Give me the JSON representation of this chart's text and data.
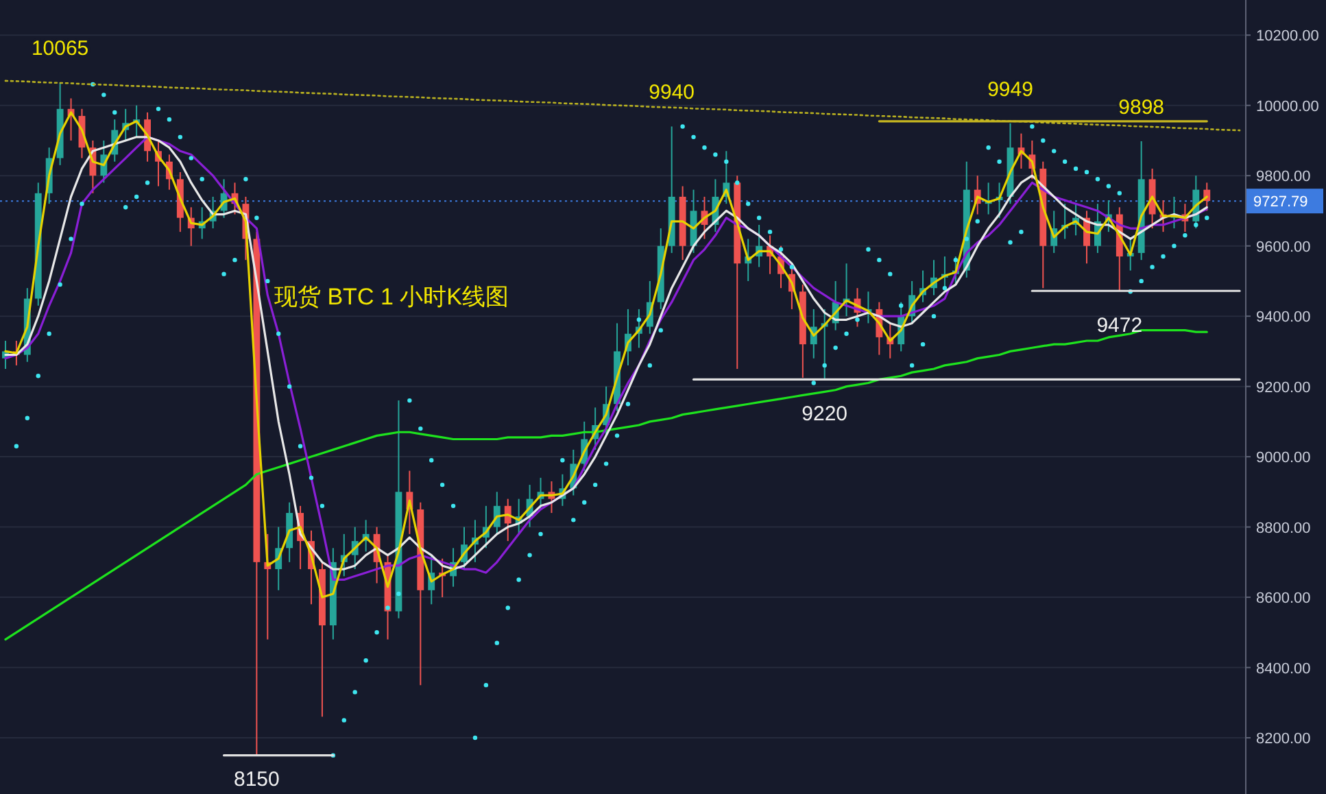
{
  "chart_data": {
    "type": "candlestick",
    "title": "现货 BTC 1 小时K线图",
    "categories": [
      null,
      null,
      null,
      null,
      null,
      null,
      null,
      null,
      null,
      null,
      null,
      null,
      null,
      null,
      null,
      null,
      null,
      null,
      null,
      null,
      null,
      null,
      null,
      null,
      null,
      null,
      null,
      null,
      null,
      null,
      null,
      null,
      null,
      null,
      null,
      null,
      null,
      null,
      null,
      null,
      null,
      null,
      null,
      null,
      null,
      null,
      null,
      null,
      null,
      null,
      null,
      null,
      null,
      null,
      null,
      null,
      null,
      null,
      null,
      null,
      null,
      null,
      null,
      null,
      null,
      null,
      null,
      null,
      null,
      null,
      null,
      null,
      null,
      null,
      null,
      null,
      null,
      null,
      null,
      null,
      null,
      null,
      null,
      null,
      null,
      null,
      null,
      null,
      null,
      null,
      null,
      null,
      null,
      null,
      null,
      null,
      null,
      null,
      null,
      null,
      null,
      null,
      null,
      null,
      null,
      null,
      null,
      null,
      null,
      null,
      null,
      null,
      null,
      null
    ],
    "ohlc": [
      [
        9280,
        9330,
        9250,
        9300
      ],
      [
        9300,
        9330,
        9260,
        9290
      ],
      [
        9290,
        9480,
        9270,
        9450
      ],
      [
        9450,
        9780,
        9430,
        9750
      ],
      [
        9750,
        9880,
        9720,
        9850
      ],
      [
        9850,
        10065,
        9830,
        9990
      ],
      [
        9990,
        10020,
        9900,
        9970
      ],
      [
        9970,
        9990,
        9850,
        9880
      ],
      [
        9880,
        9900,
        9750,
        9800
      ],
      [
        9800,
        9900,
        9780,
        9860
      ],
      [
        9860,
        9960,
        9840,
        9930
      ],
      [
        9930,
        9990,
        9900,
        9950
      ],
      [
        9950,
        10000,
        9910,
        9960
      ],
      [
        9960,
        9980,
        9840,
        9870
      ],
      [
        9870,
        9900,
        9770,
        9840
      ],
      [
        9840,
        9860,
        9760,
        9790
      ],
      [
        9790,
        9810,
        9640,
        9680
      ],
      [
        9680,
        9710,
        9600,
        9650
      ],
      [
        9650,
        9710,
        9620,
        9670
      ],
      [
        9670,
        9740,
        9650,
        9700
      ],
      [
        9700,
        9790,
        9680,
        9750
      ],
      [
        9750,
        9780,
        9690,
        9720
      ],
      [
        9720,
        9740,
        9560,
        9620
      ],
      [
        9620,
        9640,
        8150,
        8700
      ],
      [
        8700,
        8780,
        8480,
        8680
      ],
      [
        8680,
        8800,
        8620,
        8740
      ],
      [
        8740,
        8870,
        8700,
        8840
      ],
      [
        8840,
        8860,
        8680,
        8760
      ],
      [
        8760,
        8790,
        8580,
        8680
      ],
      [
        8680,
        8700,
        8260,
        8520
      ],
      [
        8520,
        8740,
        8480,
        8700
      ],
      [
        8700,
        8780,
        8660,
        8720
      ],
      [
        8720,
        8800,
        8680,
        8760
      ],
      [
        8760,
        8820,
        8730,
        8780
      ],
      [
        8780,
        8800,
        8640,
        8700
      ],
      [
        8700,
        8720,
        8480,
        8560
      ],
      [
        8560,
        9160,
        8540,
        8900
      ],
      [
        8900,
        8960,
        8780,
        8850
      ],
      [
        8850,
        8870,
        8350,
        8620
      ],
      [
        8620,
        8720,
        8580,
        8670
      ],
      [
        8670,
        8710,
        8600,
        8660
      ],
      [
        8660,
        8740,
        8630,
        8700
      ],
      [
        8700,
        8800,
        8680,
        8750
      ],
      [
        8750,
        8820,
        8700,
        8770
      ],
      [
        8770,
        8860,
        8740,
        8800
      ],
      [
        8800,
        8900,
        8780,
        8860
      ],
      [
        8860,
        8880,
        8760,
        8810
      ],
      [
        8810,
        8880,
        8780,
        8830
      ],
      [
        8830,
        8920,
        8800,
        8880
      ],
      [
        8880,
        8940,
        8850,
        8900
      ],
      [
        8900,
        8930,
        8840,
        8880
      ],
      [
        8880,
        8950,
        8860,
        8910
      ],
      [
        8910,
        9020,
        8890,
        8980
      ],
      [
        8980,
        9100,
        8960,
        9050
      ],
      [
        9050,
        9140,
        9020,
        9090
      ],
      [
        9090,
        9200,
        9060,
        9150
      ],
      [
        9150,
        9380,
        9130,
        9300
      ],
      [
        9300,
        9420,
        9260,
        9350
      ],
      [
        9350,
        9420,
        9310,
        9370
      ],
      [
        9370,
        9500,
        9350,
        9440
      ],
      [
        9440,
        9650,
        9420,
        9600
      ],
      [
        9600,
        9940,
        9580,
        9740
      ],
      [
        9740,
        9770,
        9560,
        9600
      ],
      [
        9600,
        9760,
        9580,
        9700
      ],
      [
        9700,
        9740,
        9620,
        9660
      ],
      [
        9660,
        9790,
        9640,
        9740
      ],
      [
        9740,
        9870,
        9720,
        9780
      ],
      [
        9780,
        9800,
        9250,
        9550
      ],
      [
        9550,
        9620,
        9500,
        9570
      ],
      [
        9570,
        9660,
        9540,
        9600
      ],
      [
        9600,
        9630,
        9520,
        9570
      ],
      [
        9570,
        9600,
        9480,
        9520
      ],
      [
        9520,
        9540,
        9420,
        9470
      ],
      [
        9470,
        9490,
        9225,
        9320
      ],
      [
        9320,
        9420,
        9280,
        9370
      ],
      [
        9370,
        9420,
        9220,
        9380
      ],
      [
        9380,
        9500,
        9360,
        9440
      ],
      [
        9440,
        9550,
        9400,
        9450
      ],
      [
        9450,
        9480,
        9370,
        9410
      ],
      [
        9410,
        9470,
        9380,
        9420
      ],
      [
        9420,
        9440,
        9290,
        9340
      ],
      [
        9340,
        9380,
        9280,
        9320
      ],
      [
        9320,
        9440,
        9300,
        9400
      ],
      [
        9400,
        9500,
        9380,
        9460
      ],
      [
        9460,
        9530,
        9440,
        9480
      ],
      [
        9480,
        9560,
        9460,
        9510
      ],
      [
        9510,
        9570,
        9480,
        9520
      ],
      [
        9520,
        9570,
        9490,
        9530
      ],
      [
        9530,
        9840,
        9510,
        9760
      ],
      [
        9760,
        9800,
        9690,
        9720
      ],
      [
        9720,
        9780,
        9690,
        9730
      ],
      [
        9730,
        9780,
        9680,
        9740
      ],
      [
        9740,
        9949,
        9720,
        9880
      ],
      [
        9880,
        9920,
        9820,
        9860
      ],
      [
        9860,
        9900,
        9790,
        9820
      ],
      [
        9820,
        9840,
        9480,
        9600
      ],
      [
        9600,
        9700,
        9580,
        9650
      ],
      [
        9650,
        9720,
        9620,
        9660
      ],
      [
        9660,
        9720,
        9630,
        9680
      ],
      [
        9680,
        9700,
        9550,
        9600
      ],
      [
        9600,
        9720,
        9580,
        9670
      ],
      [
        9670,
        9730,
        9640,
        9690
      ],
      [
        9690,
        9710,
        9472,
        9570
      ],
      [
        9570,
        9620,
        9530,
        9580
      ],
      [
        9580,
        9898,
        9560,
        9790
      ],
      [
        9790,
        9820,
        9650,
        9690
      ],
      [
        9690,
        9730,
        9640,
        9680
      ],
      [
        9680,
        9740,
        9650,
        9690
      ],
      [
        9690,
        9720,
        9640,
        9670
      ],
      [
        9670,
        9800,
        9650,
        9760
      ],
      [
        9760,
        9780,
        9700,
        9728
      ],
      null,
      null,
      null
    ],
    "series": [
      {
        "type": "line",
        "color": "#1ee31e",
        "values": [
          8480,
          8500,
          8520,
          8540,
          8560,
          8580,
          8600,
          8620,
          8640,
          8660,
          8680,
          8700,
          8720,
          8740,
          8760,
          8780,
          8800,
          8820,
          8840,
          8860,
          8880,
          8900,
          8920,
          8950,
          8960,
          8970,
          8980,
          8990,
          9000,
          9010,
          9020,
          9030,
          9040,
          9050,
          9060,
          9065,
          9070,
          9070,
          9065,
          9060,
          9055,
          9050,
          9050,
          9050,
          9050,
          9050,
          9055,
          9055,
          9055,
          9055,
          9060,
          9060,
          9065,
          9070,
          9070,
          9075,
          9080,
          9085,
          9090,
          9100,
          9105,
          9110,
          9120,
          9125,
          9130,
          9135,
          9140,
          9145,
          9150,
          9155,
          9160,
          9165,
          9170,
          9175,
          9180,
          9185,
          9190,
          9200,
          9205,
          9210,
          9220,
          9225,
          9230,
          9240,
          9245,
          9250,
          9260,
          9265,
          9270,
          9280,
          9285,
          9290,
          9300,
          9305,
          9310,
          9315,
          9320,
          9320,
          9325,
          9330,
          9330,
          9340,
          9345,
          9350,
          9360,
          9360,
          9360,
          9360,
          9360,
          9355,
          9355,
          null,
          null,
          null
        ]
      },
      {
        "type": "line",
        "color": "#8a1fd6",
        "values": [
          9280,
          9290,
          9310,
          9350,
          9430,
          9500,
          9580,
          9720,
          9760,
          9790,
          9820,
          9850,
          9880,
          9910,
          9900,
          9890,
          9870,
          9860,
          9830,
          9800,
          9760,
          9720,
          9680,
          9650,
          9460,
          9350,
          9210,
          9080,
          8940,
          8800,
          8650,
          8650,
          8660,
          8670,
          8680,
          8690,
          8690,
          8710,
          8720,
          8710,
          8700,
          8690,
          8680,
          8680,
          8670,
          8700,
          8740,
          8780,
          8820,
          8850,
          8870,
          8890,
          8910,
          8970,
          9030,
          9080,
          9150,
          9210,
          9260,
          9330,
          9390,
          9440,
          9500,
          9560,
          9590,
          9630,
          9680,
          9660,
          9650,
          9630,
          9600,
          9570,
          9540,
          9510,
          9480,
          9460,
          9440,
          9430,
          9420,
          9410,
          9400,
          9400,
          9400,
          9410,
          9420,
          9430,
          9450,
          9520,
          9580,
          9610,
          9630,
          9660,
          9700,
          9740,
          9780,
          9760,
          9740,
          9730,
          9720,
          9710,
          9700,
          9680,
          9660,
          9650,
          9650,
          9660,
          9660,
          9670,
          9680,
          9690,
          9705,
          null,
          null,
          null
        ]
      },
      {
        "type": "line",
        "color": "#e8e8e8",
        "values": [
          9290,
          9290,
          9320,
          9400,
          9500,
          9620,
          9740,
          9820,
          9870,
          9880,
          9890,
          9900,
          9910,
          9910,
          9900,
          9880,
          9840,
          9780,
          9730,
          9690,
          9690,
          9700,
          9690,
          9500,
          9300,
          9100,
          8950,
          8780,
          8740,
          8700,
          8680,
          8680,
          8690,
          8720,
          8740,
          8720,
          8740,
          8770,
          8740,
          8720,
          8690,
          8680,
          8690,
          8720,
          8750,
          8780,
          8800,
          8810,
          8830,
          8860,
          8870,
          8890,
          8910,
          8950,
          9000,
          9060,
          9120,
          9190,
          9260,
          9320,
          9400,
          9480,
          9540,
          9600,
          9640,
          9670,
          9700,
          9680,
          9650,
          9630,
          9600,
          9580,
          9550,
          9500,
          9450,
          9410,
          9390,
          9390,
          9400,
          9410,
          9400,
          9380,
          9370,
          9380,
          9410,
          9440,
          9470,
          9490,
          9540,
          9600,
          9650,
          9690,
          9740,
          9780,
          9800,
          9770,
          9740,
          9710,
          9690,
          9670,
          9660,
          9660,
          9640,
          9620,
          9640,
          9660,
          9680,
          9690,
          9680,
          9690,
          9710,
          null,
          null,
          null
        ]
      },
      {
        "type": "line",
        "color": "#e6d200",
        "values": [
          9300,
          9295,
          9370,
          9600,
          9800,
          9920,
          9980,
          9930,
          9840,
          9830,
          9890,
          9940,
          9955,
          9915,
          9855,
          9815,
          9735,
          9665,
          9660,
          9685,
          9725,
          9735,
          9670,
          9160,
          8690,
          8710,
          8790,
          8800,
          8720,
          8600,
          8610,
          8710,
          8740,
          8770,
          8740,
          8630,
          8730,
          8875,
          8735,
          8645,
          8665,
          8680,
          8725,
          8760,
          8785,
          8830,
          8835,
          8820,
          8855,
          8890,
          8890,
          8895,
          8945,
          9015,
          9070,
          9120,
          9225,
          9325,
          9360,
          9405,
          9520,
          9670,
          9670,
          9650,
          9680,
          9700,
          9760,
          9665,
          9560,
          9585,
          9585,
          9545,
          9495,
          9395,
          9345,
          9375,
          9410,
          9445,
          9430,
          9415,
          9380,
          9330,
          9360,
          9430,
          9470,
          9495,
          9515,
          9525,
          9645,
          9740,
          9725,
          9735,
          9810,
          9870,
          9840,
          9710,
          9625,
          9655,
          9670,
          9640,
          9635,
          9680,
          9630,
          9575,
          9685,
          9740,
          9685,
          9685,
          9680,
          9715,
          9740,
          null,
          null,
          null
        ]
      },
      {
        "type": "scatter",
        "color": "#3ee6f0",
        "marker": "circle",
        "values": [
          null,
          9030,
          9110,
          9230,
          9350,
          9490,
          9620,
          9720,
          10060,
          10030,
          9980,
          9710,
          9740,
          9780,
          9990,
          9960,
          9910,
          9850,
          9790,
          null,
          9520,
          9560,
          9790,
          9680,
          9500,
          9350,
          9200,
          9030,
          8940,
          8860,
          8150,
          8250,
          8330,
          8420,
          8500,
          8570,
          8610,
          9160,
          9080,
          8990,
          8920,
          8860,
          null,
          8200,
          8350,
          8470,
          8570,
          8650,
          8720,
          8780,
          null,
          8990,
          8820,
          8870,
          8920,
          8980,
          9060,
          9150,
          9390,
          9260,
          9360,
          null,
          9940,
          9910,
          9880,
          9860,
          9840,
          9780,
          9720,
          9680,
          9640,
          9590,
          9540,
          null,
          9210,
          9260,
          9310,
          9350,
          9390,
          9590,
          9560,
          9520,
          9430,
          9260,
          9320,
          9400,
          9480,
          9560,
          9620,
          9670,
          9880,
          9840,
          9610,
          9640,
          9940,
          9900,
          9870,
          9840,
          9820,
          9810,
          9790,
          9770,
          9750,
          9470,
          9500,
          9540,
          9570,
          9600,
          9630,
          9660,
          9680,
          null,
          null,
          null
        ]
      },
      {
        "type": "line",
        "color": "#b8b020",
        "line_style": "dotted",
        "values": [
          10070,
          10069,
          10068,
          10066,
          10065,
          10064,
          10063,
          10061,
          10060,
          10059,
          10058,
          10056,
          10055,
          10054,
          10053,
          10051,
          10050,
          10049,
          10048,
          10046,
          10045,
          10044,
          10043,
          10041,
          10040,
          10039,
          10038,
          10036,
          10035,
          10034,
          10033,
          10031,
          10030,
          10029,
          10028,
          10026,
          10025,
          10024,
          10023,
          10021,
          10020,
          10019,
          10018,
          10016,
          10015,
          10014,
          10013,
          10011,
          10010,
          10009,
          10008,
          10006,
          10005,
          10004,
          10003,
          10001,
          10000,
          9999,
          9998,
          9996,
          9995,
          9994,
          9993,
          9991,
          9990,
          9989,
          9988,
          9986,
          9985,
          9984,
          9983,
          9981,
          9980,
          9979,
          9978,
          9976,
          9975,
          9974,
          9973,
          9971,
          9970,
          9969,
          9968,
          9966,
          9965,
          9964,
          9963,
          9961,
          9960,
          9959,
          9958,
          9956,
          9955,
          9954,
          9953,
          9951,
          9950,
          9949,
          9948,
          9946,
          9945,
          9944,
          9943,
          9941,
          9940,
          9939,
          9938,
          9936,
          9935,
          9934,
          9933,
          9931,
          9930,
          9929
        ]
      },
      {
        "type": "line",
        "color": "#c8b820",
        "values": [
          null,
          null,
          null,
          null,
          null,
          null,
          null,
          null,
          null,
          null,
          null,
          null,
          null,
          null,
          null,
          null,
          null,
          null,
          null,
          null,
          null,
          null,
          null,
          null,
          null,
          null,
          null,
          null,
          null,
          null,
          null,
          null,
          null,
          null,
          null,
          null,
          null,
          null,
          null,
          null,
          null,
          null,
          null,
          null,
          null,
          null,
          null,
          null,
          null,
          null,
          null,
          null,
          null,
          null,
          null,
          null,
          null,
          null,
          null,
          null,
          null,
          null,
          null,
          null,
          null,
          null,
          null,
          null,
          null,
          null,
          null,
          null,
          null,
          null,
          null,
          null,
          null,
          null,
          null,
          null,
          9955,
          9955,
          9955,
          9955,
          9955,
          9955,
          9955,
          9955,
          9955,
          9955,
          9955,
          9955,
          9955,
          9955,
          9955,
          9955,
          9955,
          9955,
          9955,
          9955,
          9955,
          9955,
          9955,
          9955,
          9955,
          9955,
          9955,
          9955,
          9955,
          9955,
          9955,
          null,
          null,
          null
        ]
      },
      {
        "type": "line",
        "color": "#e0e0e0",
        "values": [
          null,
          null,
          null,
          null,
          null,
          null,
          null,
          null,
          null,
          null,
          null,
          null,
          null,
          null,
          null,
          null,
          null,
          null,
          null,
          null,
          null,
          null,
          null,
          null,
          null,
          null,
          null,
          null,
          null,
          null,
          null,
          null,
          null,
          null,
          null,
          null,
          null,
          null,
          null,
          null,
          null,
          null,
          null,
          null,
          null,
          null,
          null,
          null,
          null,
          null,
          null,
          null,
          null,
          null,
          null,
          null,
          null,
          null,
          null,
          null,
          null,
          null,
          null,
          9220,
          9220,
          9220,
          9220,
          9220,
          9220,
          9220,
          9220,
          9220,
          9220,
          9220,
          9220,
          9220,
          9220,
          9220,
          9220,
          9220,
          9220,
          9220,
          9220,
          9220,
          9220,
          9220,
          9220,
          9220,
          9220,
          9220,
          9220,
          9220,
          9220,
          9220,
          9220,
          9220,
          9220,
          9220,
          9220,
          9220,
          9220,
          9220,
          9220,
          9220,
          9220,
          9220,
          9220,
          9220,
          9220,
          9220,
          9220,
          9220,
          9220,
          9220
        ]
      },
      {
        "type": "line",
        "color": "#e0e0e0",
        "values": [
          null,
          null,
          null,
          null,
          null,
          null,
          null,
          null,
          null,
          null,
          null,
          null,
          null,
          null,
          null,
          null,
          null,
          null,
          null,
          null,
          null,
          null,
          null,
          null,
          null,
          null,
          null,
          null,
          null,
          null,
          null,
          null,
          null,
          null,
          null,
          null,
          null,
          null,
          null,
          null,
          null,
          null,
          null,
          null,
          null,
          null,
          null,
          null,
          null,
          null,
          null,
          null,
          null,
          null,
          null,
          null,
          null,
          null,
          null,
          null,
          null,
          null,
          null,
          null,
          null,
          null,
          null,
          null,
          null,
          null,
          null,
          null,
          null,
          null,
          null,
          null,
          null,
          null,
          null,
          null,
          null,
          null,
          null,
          null,
          null,
          null,
          null,
          null,
          null,
          null,
          null,
          null,
          null,
          null,
          9472,
          9472,
          9472,
          9472,
          9472,
          9472,
          9472,
          9472,
          9472,
          9472,
          9472,
          9472,
          9472,
          9472,
          9472,
          9472,
          9472,
          9472,
          9472,
          9472
        ]
      },
      {
        "type": "line",
        "color": "#e0e0e0",
        "values": [
          null,
          null,
          null,
          null,
          null,
          null,
          null,
          null,
          null,
          null,
          null,
          null,
          null,
          null,
          null,
          null,
          null,
          null,
          null,
          null,
          8150,
          8150,
          8150,
          8150,
          8150,
          8150,
          8150,
          8150,
          8150,
          8150,
          8150,
          null,
          null,
          null,
          null,
          null,
          null,
          null,
          null,
          null,
          null,
          null,
          null,
          null,
          null,
          null,
          null,
          null,
          null,
          null,
          null,
          null,
          null,
          null,
          null,
          null,
          null,
          null,
          null,
          null,
          null,
          null,
          null,
          null,
          null,
          null,
          null,
          null,
          null,
          null,
          null,
          null,
          null,
          null,
          null,
          null,
          null,
          null,
          null,
          null,
          null,
          null,
          null,
          null,
          null,
          null,
          null,
          null,
          null,
          null,
          null,
          null,
          null,
          null,
          null,
          null,
          null,
          null,
          null,
          null,
          null,
          null,
          null,
          null,
          null,
          null,
          null,
          null,
          null,
          null,
          null,
          null,
          null,
          null
        ]
      }
    ],
    "annotations": [
      {
        "text": "10065",
        "y": 10065
      },
      {
        "text": "9940",
        "y": 9940
      },
      {
        "text": "9949",
        "y": 9949
      },
      {
        "text": "9898",
        "y": 9898
      },
      {
        "text": "9220",
        "y": 9220
      },
      {
        "text": "9472",
        "y": 9472
      },
      {
        "text": "8150",
        "y": 8150
      }
    ],
    "ref_lines": [
      {
        "axis": "y",
        "value": 9727.79,
        "label": "9727.79",
        "color": "#3d7be0",
        "line_style": "dotted"
      }
    ],
    "ylim": [
      8040,
      10300
    ],
    "yticks": [
      {
        "value": 8200,
        "label": "8200.00"
      },
      {
        "value": 8400,
        "label": "8400.00"
      },
      {
        "value": 8600,
        "label": "8600.00"
      },
      {
        "value": 8800,
        "label": "8800.00"
      },
      {
        "value": 9000,
        "label": "9000.00"
      },
      {
        "value": 9200,
        "label": "9200.00"
      },
      {
        "value": 9400,
        "label": "9400.00"
      },
      {
        "value": 9600,
        "label": "9600.00"
      },
      {
        "value": 9800,
        "label": "9800.00"
      },
      {
        "value": 10000,
        "label": "10000.00"
      },
      {
        "value": 10200,
        "label": "10200.00"
      }
    ],
    "grid": "y",
    "tick_labels": "y"
  }
}
